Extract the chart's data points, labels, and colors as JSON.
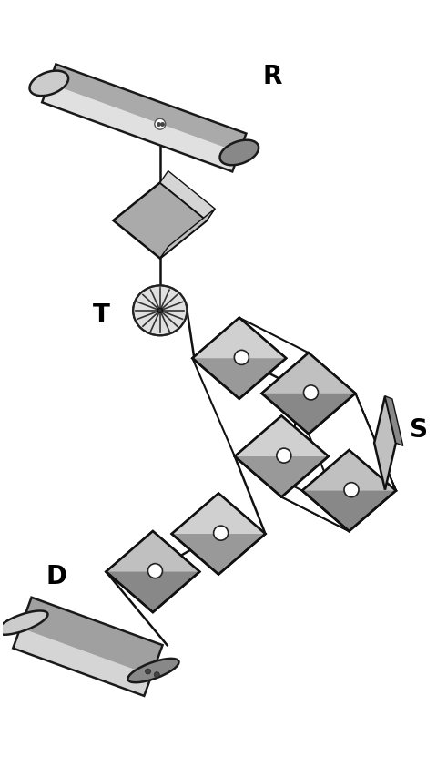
{
  "bg_color": "#ffffff",
  "label_R": "R",
  "label_T": "T",
  "label_S": "S",
  "label_D": "D",
  "label_fontsize": 20,
  "fig_width": 4.91,
  "fig_height": 8.31,
  "dpi": 100
}
